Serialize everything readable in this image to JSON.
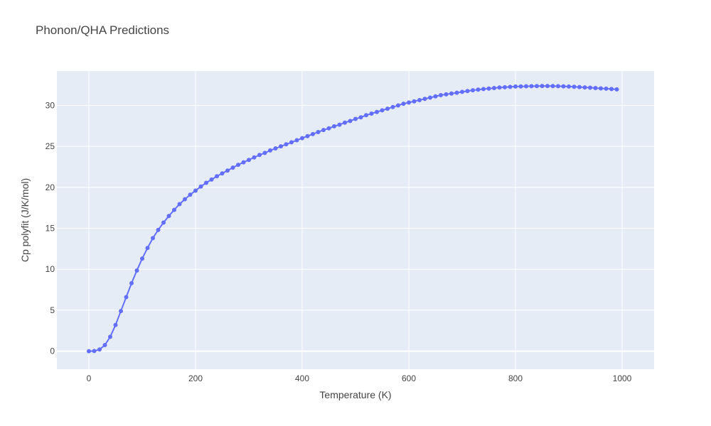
{
  "chart_data": {
    "type": "line",
    "title": "Phonon/QHA Predictions",
    "xlabel": "Temperature (K)",
    "ylabel": "Cp polyfit (J/K/mol)",
    "xlim": [
      -60,
      1060
    ],
    "ylim": [
      -2.2,
      34.2
    ],
    "x_ticks": [
      0,
      200,
      400,
      600,
      800,
      1000
    ],
    "y_ticks": [
      0,
      5,
      10,
      15,
      20,
      25,
      30
    ],
    "grid": true,
    "legend": "none",
    "colors": {
      "plot_bg": "#e5ecf6",
      "grid": "#ffffff",
      "series": "#636efa"
    },
    "series": [
      {
        "mode": "lines+markers",
        "x": [
          0,
          10,
          20,
          30,
          40,
          50,
          60,
          70,
          80,
          90,
          100,
          110,
          120,
          130,
          140,
          150,
          160,
          170,
          180,
          190,
          200,
          210,
          220,
          230,
          240,
          250,
          260,
          270,
          280,
          290,
          300,
          310,
          320,
          330,
          340,
          350,
          360,
          370,
          380,
          390,
          400,
          410,
          420,
          430,
          440,
          450,
          460,
          470,
          480,
          490,
          500,
          510,
          520,
          530,
          540,
          550,
          560,
          570,
          580,
          590,
          600,
          610,
          620,
          630,
          640,
          650,
          660,
          670,
          680,
          690,
          700,
          710,
          720,
          730,
          740,
          750,
          760,
          770,
          780,
          790,
          800,
          810,
          820,
          830,
          840,
          850,
          860,
          870,
          880,
          890,
          900,
          910,
          920,
          930,
          940,
          950,
          960,
          970,
          980,
          990
        ],
        "y": [
          0,
          0.02,
          0.2,
          0.75,
          1.75,
          3.2,
          4.9,
          6.6,
          8.3,
          9.85,
          11.3,
          12.6,
          13.8,
          14.8,
          15.7,
          16.5,
          17.25,
          17.95,
          18.55,
          19.1,
          19.6,
          20.1,
          20.55,
          20.95,
          21.35,
          21.7,
          22.05,
          22.4,
          22.75,
          23.05,
          23.35,
          23.65,
          23.95,
          24.2,
          24.5,
          24.75,
          25.0,
          25.25,
          25.5,
          25.75,
          26.0,
          26.25,
          26.5,
          26.75,
          27.0,
          27.2,
          27.45,
          27.65,
          27.9,
          28.1,
          28.35,
          28.55,
          28.8,
          29.0,
          29.2,
          29.4,
          29.6,
          29.8,
          30.0,
          30.2,
          30.35,
          30.5,
          30.65,
          30.8,
          30.95,
          31.1,
          31.25,
          31.35,
          31.45,
          31.55,
          31.65,
          31.75,
          31.85,
          31.92,
          32.0,
          32.05,
          32.12,
          32.18,
          32.22,
          32.26,
          32.3,
          32.32,
          32.34,
          32.35,
          32.36,
          32.37,
          32.37,
          32.36,
          32.35,
          32.33,
          32.3,
          32.27,
          32.24,
          32.2,
          32.16,
          32.12,
          32.08,
          32.04,
          32.0,
          31.96
        ]
      }
    ]
  }
}
